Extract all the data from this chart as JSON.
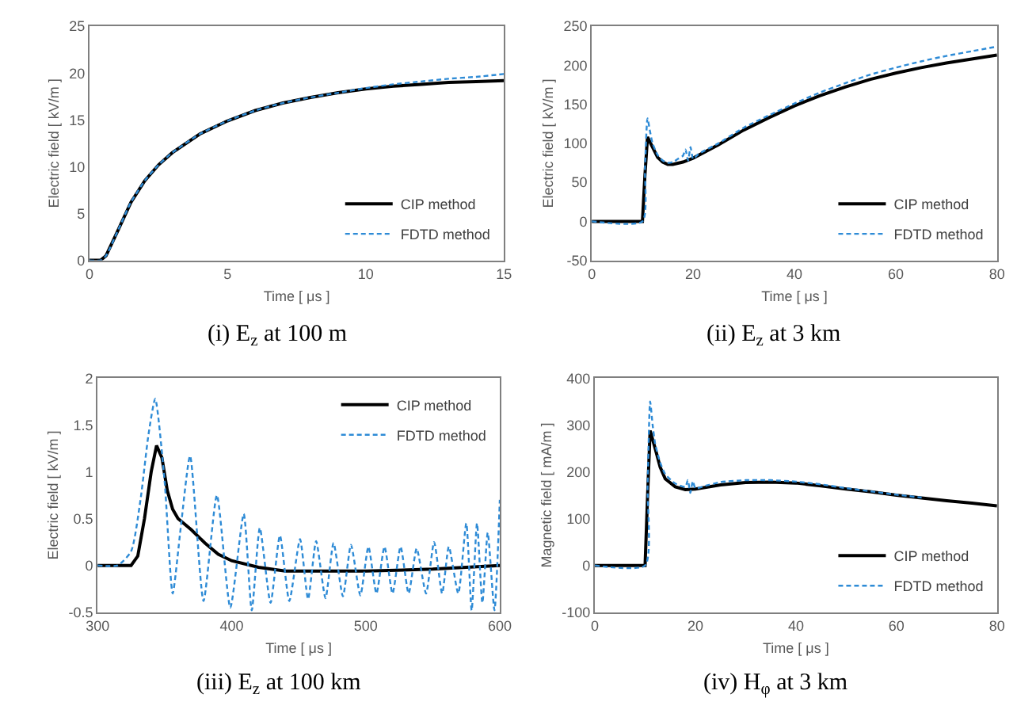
{
  "chart_data": [
    {
      "type": "line",
      "title": "(i) E$_{z}$ at 100 m",
      "xlabel": "Time [ μs ]",
      "ylabel": "Electric field [ kV/m ]",
      "xlim": [
        0,
        15
      ],
      "xticks": [
        0,
        5,
        10,
        15
      ],
      "ylim": [
        0,
        25
      ],
      "yticks": [
        0,
        5,
        10,
        15,
        20,
        25
      ],
      "legend": "bottom right",
      "series": [
        {
          "name": "CIP method",
          "color": "#000000",
          "line_style": "solid",
          "x": [
            0,
            0.4,
            0.6,
            1,
            1.5,
            2,
            2.5,
            3,
            4,
            5,
            6,
            7,
            8,
            9,
            10,
            11,
            12,
            13,
            14,
            15
          ],
          "values": [
            0,
            0,
            0.5,
            3,
            6.2,
            8.5,
            10.2,
            11.5,
            13.5,
            14.9,
            16,
            16.8,
            17.4,
            17.9,
            18.3,
            18.6,
            18.8,
            19,
            19.1,
            19.2
          ]
        },
        {
          "name": "FDTD method",
          "color": "#2e8bd6",
          "line_style": "dashed",
          "x": [
            0,
            0.4,
            0.6,
            1,
            1.5,
            2,
            2.5,
            3,
            4,
            5,
            6,
            7,
            8,
            9,
            10,
            11,
            12,
            13,
            14,
            15
          ],
          "values": [
            0,
            0,
            0.5,
            3,
            6.2,
            8.5,
            10.2,
            11.5,
            13.5,
            14.9,
            16,
            16.8,
            17.4,
            17.9,
            18.4,
            18.8,
            19.1,
            19.4,
            19.6,
            19.9
          ]
        }
      ]
    },
    {
      "type": "line",
      "title": "(ii) E$_{z}$ at 3 km",
      "xlabel": "Time [ μs ]",
      "ylabel": "Electric field [ kV/m ]",
      "xlim": [
        0,
        80
      ],
      "xticks": [
        0,
        20,
        40,
        60,
        80
      ],
      "ylim": [
        -50,
        250
      ],
      "yticks": [
        -50,
        0,
        50,
        100,
        150,
        200,
        250
      ],
      "legend": "bottom right",
      "series": [
        {
          "name": "CIP method",
          "color": "#000000",
          "line_style": "solid",
          "x": [
            0,
            10,
            10.5,
            11,
            12,
            13,
            14,
            15,
            16,
            18,
            20,
            25,
            30,
            35,
            40,
            45,
            50,
            55,
            60,
            65,
            70,
            75,
            80
          ],
          "values": [
            0,
            0,
            60,
            108,
            95,
            82,
            76,
            73,
            73,
            76,
            81,
            98,
            117,
            133,
            148,
            161,
            172,
            182,
            190,
            197,
            203,
            208,
            213
          ]
        },
        {
          "name": "FDTD method",
          "color": "#2e8bd6",
          "line_style": "dashed",
          "x": [
            0,
            10,
            10.5,
            11,
            11.5,
            12,
            13,
            14,
            15,
            16,
            17,
            18,
            18.5,
            19,
            19.5,
            20,
            21,
            25,
            30,
            35,
            40,
            45,
            50,
            55,
            60,
            65,
            70,
            75,
            80
          ],
          "values": [
            0,
            0,
            70,
            132,
            115,
            100,
            85,
            78,
            75,
            76,
            80,
            84,
            92,
            78,
            95,
            80,
            86,
            100,
            120,
            136,
            151,
            165,
            177,
            188,
            197,
            205,
            212,
            218,
            224
          ]
        }
      ]
    },
    {
      "type": "line",
      "title": "(iii) E$_{z}$ at 100 km",
      "xlabel": "Time [ μs ]",
      "ylabel": "Electric field [ kV/m ]",
      "xlim": [
        300,
        600
      ],
      "xticks": [
        300,
        400,
        500,
        600
      ],
      "ylim": [
        -0.5,
        2
      ],
      "yticks": [
        -0.5,
        0,
        0.5,
        1,
        1.5,
        2
      ],
      "legend": "top right",
      "series": [
        {
          "name": "CIP method",
          "color": "#000000",
          "line_style": "solid",
          "x": [
            300,
            325,
            330,
            335,
            340,
            344,
            348,
            352,
            356,
            360,
            370,
            380,
            390,
            400,
            420,
            440,
            460,
            500,
            550,
            600
          ],
          "values": [
            0,
            0,
            0.1,
            0.5,
            1.0,
            1.28,
            1.15,
            0.8,
            0.6,
            0.5,
            0.38,
            0.24,
            0.12,
            0.05,
            -0.02,
            -0.06,
            -0.06,
            -0.06,
            -0.04,
            0
          ]
        },
        {
          "name": "FDTD method",
          "color": "#2e8bd6",
          "line_style": "dashed",
          "x": [
            300,
            315,
            325,
            332,
            338,
            343,
            350,
            356,
            362,
            369,
            379,
            389,
            399,
            409,
            415,
            421,
            429,
            436,
            443,
            451,
            457,
            463,
            470,
            476,
            483,
            489,
            496,
            502,
            508,
            514,
            520,
            526,
            532,
            538,
            545,
            551,
            557,
            562,
            569,
            575,
            579,
            583,
            587,
            591,
            596,
            600
          ],
          "values": [
            0,
            0,
            0.15,
            0.7,
            1.4,
            1.78,
            0.9,
            -0.3,
            0.4,
            1.17,
            -0.38,
            0.75,
            -0.45,
            0.55,
            -0.48,
            0.4,
            -0.4,
            0.32,
            -0.38,
            0.28,
            -0.36,
            0.26,
            -0.35,
            0.24,
            -0.33,
            0.22,
            -0.32,
            0.2,
            -0.3,
            0.2,
            -0.3,
            0.2,
            -0.3,
            0.18,
            -0.3,
            0.25,
            -0.3,
            0.2,
            -0.3,
            0.45,
            -0.48,
            0.45,
            -0.4,
            0.35,
            -0.48,
            0.7
          ]
        }
      ]
    },
    {
      "type": "line",
      "title": "(iv) H$_{φ}$ at 3 km",
      "xlabel": "Time [ μs ]",
      "ylabel": "Magnetic field [ mA/m ]",
      "xlim": [
        0,
        80
      ],
      "xticks": [
        0,
        20,
        40,
        60,
        80
      ],
      "ylim": [
        -100,
        400
      ],
      "yticks": [
        -100,
        0,
        100,
        200,
        300,
        400
      ],
      "legend": "bottom right",
      "series": [
        {
          "name": "CIP method",
          "color": "#000000",
          "line_style": "solid",
          "x": [
            0,
            10,
            10.5,
            11,
            12,
            13,
            14,
            16,
            18,
            20,
            25,
            30,
            35,
            40,
            45,
            50,
            55,
            60,
            65,
            70,
            75,
            80
          ],
          "values": [
            0,
            0,
            150,
            288,
            250,
            210,
            185,
            168,
            162,
            163,
            172,
            177,
            178,
            176,
            170,
            163,
            157,
            150,
            144,
            138,
            133,
            127
          ]
        },
        {
          "name": "FDTD method",
          "color": "#2e8bd6",
          "line_style": "dashed",
          "x": [
            0,
            10,
            10.5,
            11,
            11.5,
            12,
            13,
            14,
            16,
            18,
            18.5,
            19,
            19.5,
            20,
            22,
            25,
            30,
            35,
            40,
            45,
            50,
            55,
            60,
            65
          ],
          "values": [
            0,
            0,
            170,
            350,
            300,
            260,
            220,
            195,
            175,
            168,
            182,
            155,
            180,
            165,
            170,
            178,
            182,
            182,
            179,
            173,
            165,
            158,
            151,
            145
          ]
        }
      ]
    }
  ]
}
